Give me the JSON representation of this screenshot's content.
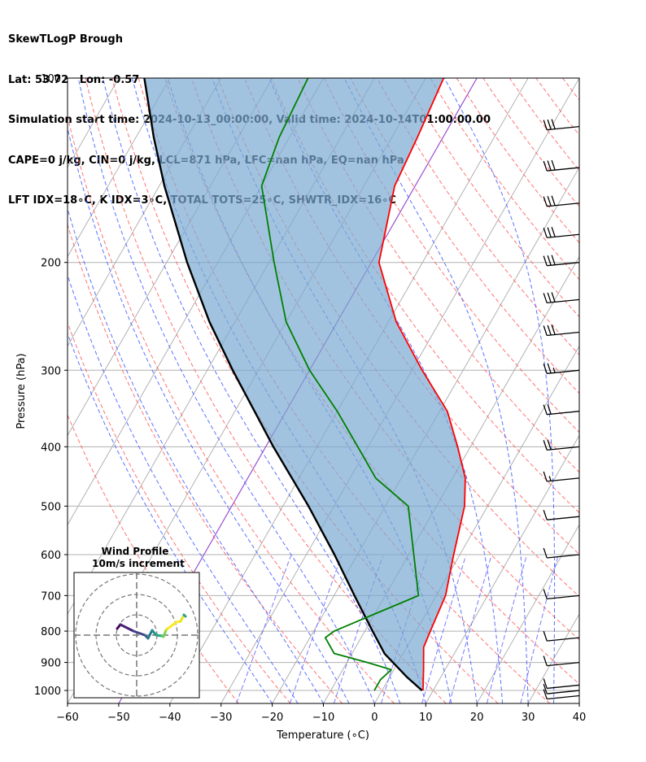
{
  "header": {
    "line1": "SkewTLogP Brough",
    "line2": "Lat: 53.72   Lon: -0.57",
    "line3": "Simulation start time: 2024-10-13_00:00:00, Valid time: 2024-10-14T01:00:00.00",
    "line4": "CAPE=0 j/kg, CIN=0 j/kg, LCL=871 hPa, LFC=nan hPa, EQ=nan hPa",
    "line5": "LFT IDX=18∘C, K IDX=3∘C, TOTAL TOTS=25∘C, SHWTR_IDX=16∘C"
  },
  "colors": {
    "temperature": "#ff0000",
    "dewpoint": "#008000",
    "parcel": "#000000",
    "cin_fill": "#7aa9d1",
    "dry_adiabat": "#ff5a5a",
    "moist_adiabat": "#3e5bff",
    "mixing_ratio": "#6b6bff",
    "isotherm_grid": "#aaaaaa",
    "isotherm_zero": "#9a4fd0"
  },
  "chart_data": {
    "type": "line",
    "title": "",
    "xlabel": "Temperature (∘C)",
    "ylabel": "Pressure (hPa)",
    "xlim": [
      -60,
      40
    ],
    "ylim": [
      1050,
      100
    ],
    "y_scale": "log",
    "x_ticks": [
      "−60",
      "−50",
      "−40",
      "−30",
      "−20",
      "−10",
      "0",
      "10",
      "20",
      "30",
      "40"
    ],
    "y_ticks": [
      "100",
      "200",
      "300",
      "400",
      "500",
      "600",
      "700",
      "800",
      "900",
      "1000"
    ],
    "grid": true,
    "series": [
      {
        "key": "temperature",
        "values": [
          [
            1000,
            8.0
          ],
          [
            925,
            5.8
          ],
          [
            850,
            3.3
          ],
          [
            800,
            2.8
          ],
          [
            700,
            1.8
          ],
          [
            600,
            -1.2
          ],
          [
            500,
            -4.5
          ],
          [
            450,
            -7.5
          ],
          [
            400,
            -12.5
          ],
          [
            350,
            -18.5
          ],
          [
            300,
            -28.0
          ],
          [
            250,
            -38.5
          ],
          [
            200,
            -48.5
          ],
          [
            150,
            -54.0
          ],
          [
            125,
            -55.0
          ],
          [
            100,
            -56.5
          ]
        ]
      },
      {
        "key": "dewpoint",
        "values": [
          [
            1000,
            -1.5
          ],
          [
            960,
            -1.5
          ],
          [
            925,
            -0.5
          ],
          [
            900,
            -6.0
          ],
          [
            870,
            -13.5
          ],
          [
            820,
            -17.0
          ],
          [
            800,
            -16.0
          ],
          [
            750,
            -10.0
          ],
          [
            700,
            -3.5
          ],
          [
            600,
            -9.0
          ],
          [
            500,
            -15.5
          ],
          [
            450,
            -25.0
          ],
          [
            400,
            -32.0
          ],
          [
            350,
            -40.0
          ],
          [
            300,
            -50.0
          ],
          [
            250,
            -60.0
          ],
          [
            200,
            -69.0
          ],
          [
            150,
            -80.0
          ],
          [
            125,
            -82.0
          ],
          [
            100,
            -83.0
          ]
        ]
      },
      {
        "key": "parcel",
        "values": [
          [
            1000,
            7.8
          ],
          [
            950,
            3.3
          ],
          [
            900,
            -1.0
          ],
          [
            871,
            -3.6
          ],
          [
            800,
            -8.5
          ],
          [
            700,
            -16.0
          ],
          [
            600,
            -24.5
          ],
          [
            500,
            -35.0
          ],
          [
            400,
            -48.5
          ],
          [
            300,
            -65.0
          ],
          [
            250,
            -75.0
          ],
          [
            200,
            -86.0
          ],
          [
            150,
            -99.0
          ],
          [
            125,
            -106.5
          ],
          [
            100,
            -115.0
          ]
        ]
      }
    ],
    "wind_barbs": {
      "pressures": [
        120,
        140,
        160,
        180,
        200,
        230,
        260,
        300,
        350,
        400,
        450,
        520,
        600,
        700,
        820,
        900,
        980,
        1000,
        1020
      ],
      "speeds_kt": [
        30,
        30,
        30,
        30,
        30,
        30,
        30,
        25,
        20,
        20,
        15,
        10,
        10,
        10,
        10,
        10,
        10,
        10,
        10
      ]
    },
    "inset": {
      "title": "Wind Profile",
      "subtitle": "10m/s increment",
      "rings": [
        1,
        2,
        3
      ]
    }
  }
}
